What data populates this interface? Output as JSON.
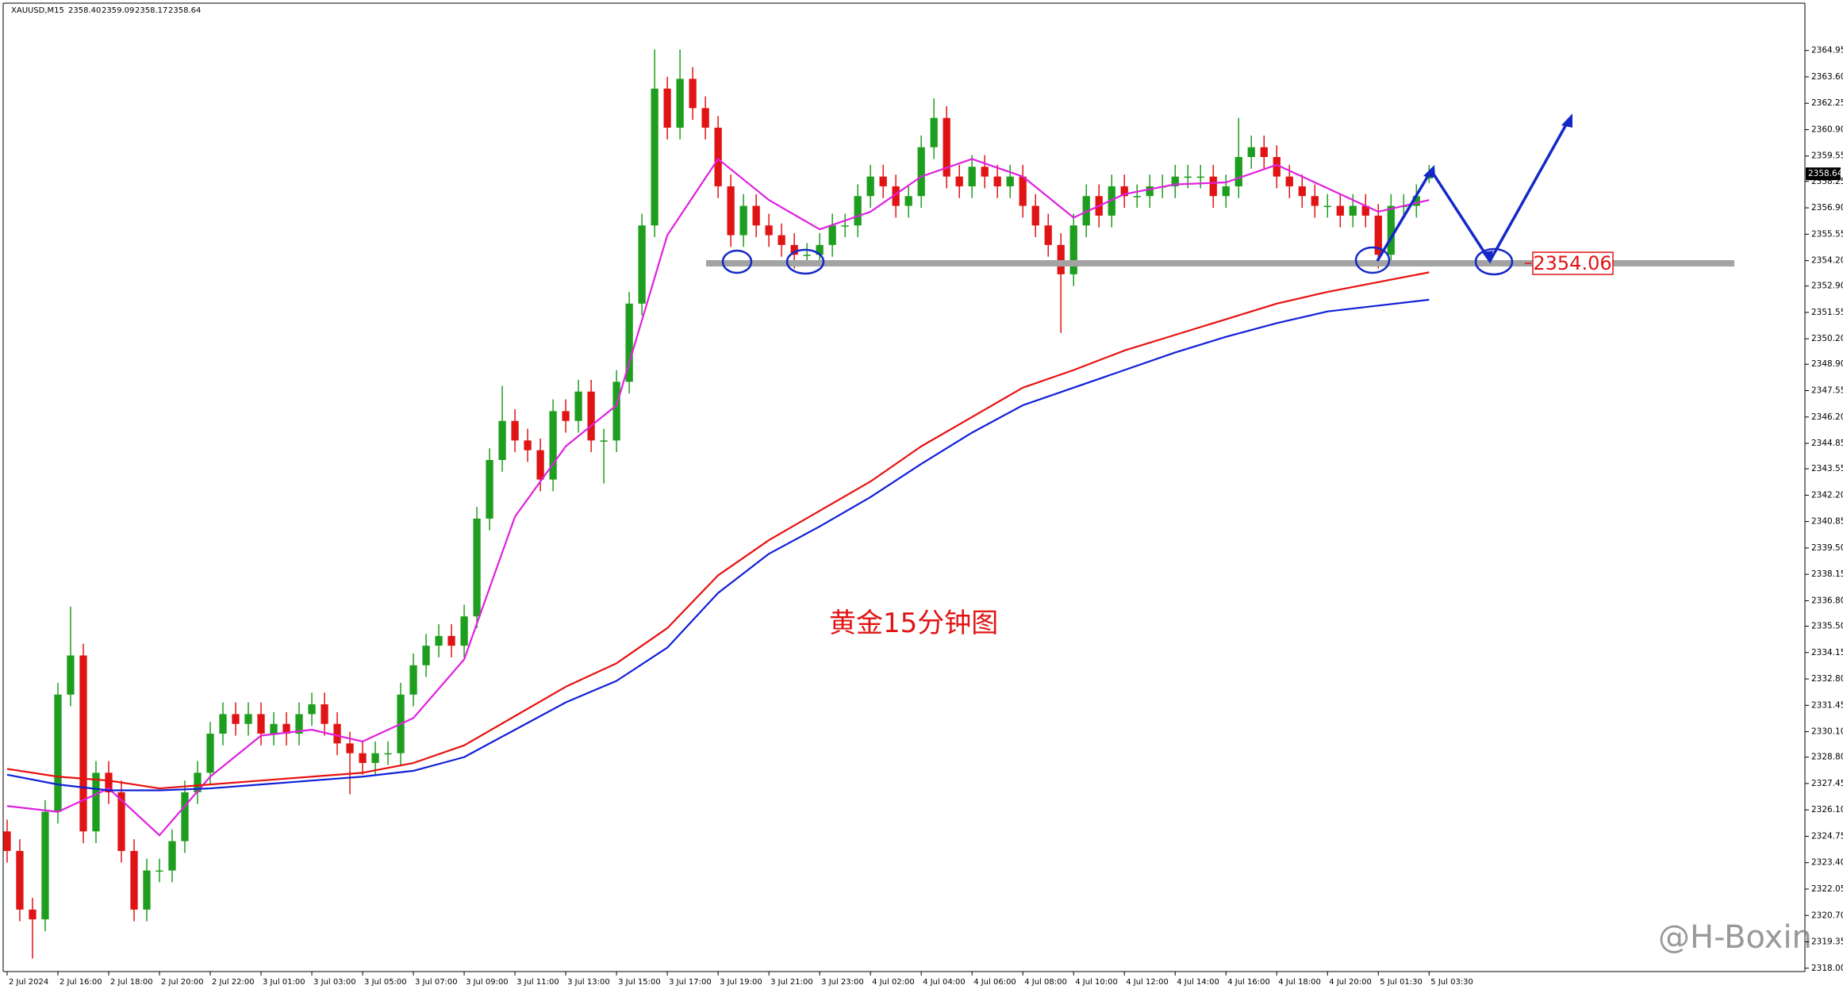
{
  "header": {
    "symbol": "XAUUSD,M15",
    "ohlc": [
      "2358.40",
      "2359.09",
      "2358.17",
      "2358.64"
    ]
  },
  "watermark": "@H-Boxin",
  "chart_data": {
    "type": "candlestick",
    "title": "黄金15分钟图",
    "up_color": "#1e9e1e",
    "down_color": "#e01414",
    "xlim": [
      -0.31,
      141.6
    ],
    "ylim": [
      2317.83,
      2367.37
    ],
    "xticks": [
      {
        "value": 0,
        "label": "2 Jul 2024"
      },
      {
        "value": 4,
        "label": "2 Jul 16:00"
      },
      {
        "value": 8,
        "label": "2 Jul 18:00"
      },
      {
        "value": 12,
        "label": "2 Jul 20:00"
      },
      {
        "value": 16,
        "label": "2 Jul 22:00"
      },
      {
        "value": 20,
        "label": "3 Jul 01:00"
      },
      {
        "value": 24,
        "label": "3 Jul 03:00"
      },
      {
        "value": 28,
        "label": "3 Jul 05:00"
      },
      {
        "value": 32,
        "label": "3 Jul 07:00"
      },
      {
        "value": 36,
        "label": "3 Jul 09:00"
      },
      {
        "value": 40,
        "label": "3 Jul 11:00"
      },
      {
        "value": 44,
        "label": "3 Jul 13:00"
      },
      {
        "value": 48,
        "label": "3 Jul 15:00"
      },
      {
        "value": 52,
        "label": "3 Jul 17:00"
      },
      {
        "value": 56,
        "label": "3 Jul 19:00"
      },
      {
        "value": 60,
        "label": "3 Jul 21:00"
      },
      {
        "value": 64,
        "label": "3 Jul 23:00"
      },
      {
        "value": 68,
        "label": "4 Jul 02:00"
      },
      {
        "value": 72,
        "label": "4 Jul 04:00"
      },
      {
        "value": 76,
        "label": "4 Jul 06:00"
      },
      {
        "value": 80,
        "label": "4 Jul 08:00"
      },
      {
        "value": 84,
        "label": "4 Jul 10:00"
      },
      {
        "value": 88,
        "label": "4 Jul 12:00"
      },
      {
        "value": 92,
        "label": "4 Jul 14:00"
      },
      {
        "value": 96,
        "label": "4 Jul 16:00"
      },
      {
        "value": 100,
        "label": "4 Jul 18:00"
      },
      {
        "value": 104,
        "label": "4 Jul 20:00"
      },
      {
        "value": 108,
        "label": "5 Jul 01:30"
      },
      {
        "value": 112,
        "label": "5 Jul 03:30"
      }
    ],
    "yticks": [
      2364.95,
      {
        "value": 2363.6,
        "label": "2363.60"
      },
      2362.25,
      {
        "value": 2360.9,
        "label": "2360.90"
      },
      2359.55,
      2358.25,
      {
        "value": 2356.9,
        "label": "2356.90"
      },
      2355.55,
      {
        "value": 2354.2,
        "label": "2354.20"
      },
      {
        "value": 2352.9,
        "label": "2352.90"
      },
      2351.55,
      {
        "value": 2350.2,
        "label": "2350.20"
      },
      {
        "value": 2348.9,
        "label": "2348.90"
      },
      2347.55,
      {
        "value": 2346.2,
        "label": "2346.20"
      },
      2344.85,
      2343.55,
      {
        "value": 2342.2,
        "label": "2342.20"
      },
      2340.85,
      {
        "value": 2339.5,
        "label": "2339.50"
      },
      2338.15,
      {
        "value": 2336.8,
        "label": "2336.80"
      },
      {
        "value": 2335.5,
        "label": "2335.50"
      },
      2334.15,
      {
        "value": 2332.8,
        "label": "2332.80"
      },
      2331.45,
      {
        "value": 2330.1,
        "label": "2330.10"
      },
      {
        "value": 2328.8,
        "label": "2328.80"
      },
      2327.45,
      {
        "value": 2326.1,
        "label": "2326.10"
      },
      2324.75,
      {
        "value": 2323.4,
        "label": "2323.40"
      },
      2322.05,
      {
        "value": 2320.7,
        "label": "2320.70"
      },
      2319.35,
      {
        "value": 2318,
        "label": "2318.00"
      }
    ],
    "open": [
      2325,
      2324,
      2321,
      2320.5,
      2326,
      2332,
      2334,
      2325,
      2328,
      2327,
      2324,
      2321,
      2323,
      2323,
      2324.5,
      2327,
      2328,
      2330,
      2331,
      2330.5,
      2331,
      2330,
      2330.5,
      2330,
      2331,
      2331.5,
      2330.5,
      2329.5,
      2329,
      2328.5,
      2329,
      2329,
      2332,
      2333.5,
      2334.5,
      2335,
      2334.5,
      2336,
      2341,
      2344,
      2346,
      2345,
      2344.5,
      2343,
      2346.5,
      2346,
      2347.5,
      2345,
      2345,
      2348,
      2352,
      2356,
      2363,
      2361,
      2363.5,
      2362,
      2361,
      2358,
      2355.5,
      2357,
      2356,
      2355.5,
      2355,
      2354.5,
      2354.5,
      2355,
      2356,
      2356,
      2357.5,
      2358.5,
      2358,
      2357,
      2357.5,
      2360,
      2361.5,
      2358.5,
      2358,
      2359,
      2358.5,
      2358,
      2358.5,
      2357,
      2356,
      2355,
      2353.5,
      2356,
      2357.5,
      2356.5,
      2358,
      2357.5,
      2357.5,
      2358,
      2358,
      2358.5,
      2358.5,
      2358.5,
      2357.5,
      2358,
      2359.5,
      2360,
      2359.5,
      2358.5,
      2358,
      2357.5,
      2357,
      2357,
      2356.5,
      2357,
      2356.5,
      2354.5,
      2357,
      2357,
      2358.4
    ],
    "high": [
      2325.6,
      2324.6,
      2321.6,
      2326.6,
      2332.6,
      2336.5,
      2334.6,
      2328.6,
      2328.6,
      2327.6,
      2324.6,
      2323.6,
      2323.6,
      2325.1,
      2327.6,
      2328.6,
      2330.6,
      2331.6,
      2331.6,
      2331.6,
      2331.6,
      2331.1,
      2331.1,
      2331.6,
      2332.1,
      2332.1,
      2331.1,
      2330.1,
      2329.6,
      2329.6,
      2329.6,
      2332.6,
      2334.1,
      2335.1,
      2335.6,
      2335.6,
      2336.6,
      2341.6,
      2344.6,
      2347.8,
      2346.6,
      2345.6,
      2345.1,
      2347.1,
      2347.1,
      2348.1,
      2348.1,
      2345.6,
      2348.6,
      2352.6,
      2356.6,
      2365,
      2363.6,
      2365,
      2364.1,
      2362.6,
      2361.6,
      2358.6,
      2357.6,
      2357.6,
      2356.6,
      2356.1,
      2355.6,
      2355.1,
      2355.6,
      2356.6,
      2356.6,
      2358.1,
      2359.1,
      2359.1,
      2358.6,
      2358.1,
      2360.6,
      2362.5,
      2362.1,
      2359.1,
      2359.6,
      2359.6,
      2359.1,
      2359.1,
      2359.1,
      2357.6,
      2356.6,
      2355.6,
      2356.6,
      2358.1,
      2358.1,
      2358.6,
      2358.6,
      2358.1,
      2358.6,
      2358.6,
      2359.1,
      2359.1,
      2359.1,
      2359.1,
      2358.6,
      2361.5,
      2360.6,
      2360.6,
      2360.1,
      2359.1,
      2358.6,
      2358.1,
      2357.6,
      2357.6,
      2357.6,
      2357.6,
      2357.1,
      2357.6,
      2357.6,
      2358.1,
      2359.09
    ],
    "low": [
      2323.4,
      2320.4,
      2318.5,
      2319.9,
      2325.4,
      2331.4,
      2324.4,
      2324.4,
      2326.4,
      2323.4,
      2320.4,
      2320.4,
      2322.4,
      2322.4,
      2323.9,
      2326.4,
      2327.4,
      2329.4,
      2329.9,
      2329.9,
      2329.4,
      2329.4,
      2329.4,
      2329.4,
      2330.4,
      2329.9,
      2328.9,
      2326.9,
      2327.9,
      2327.9,
      2328.4,
      2328.4,
      2331.4,
      2332.9,
      2333.9,
      2333.9,
      2333.9,
      2335.4,
      2340.4,
      2343.4,
      2344.4,
      2343.9,
      2342.4,
      2342.4,
      2345.4,
      2345.4,
      2344.4,
      2342.8,
      2344.4,
      2347.4,
      2351.4,
      2355.4,
      2360.4,
      2360.4,
      2361.4,
      2360.4,
      2357.4,
      2354.9,
      2354.9,
      2355.4,
      2354.9,
      2354.4,
      2353.8,
      2353.9,
      2353.9,
      2354.4,
      2355.4,
      2355.4,
      2356.9,
      2357.4,
      2356.4,
      2356.4,
      2356.9,
      2359.4,
      2357.9,
      2357.4,
      2357.4,
      2357.9,
      2357.4,
      2357.4,
      2356.4,
      2355.4,
      2354.4,
      2350.5,
      2352.9,
      2355.4,
      2355.9,
      2355.9,
      2356.9,
      2356.9,
      2356.9,
      2357.4,
      2357.4,
      2357.9,
      2357.9,
      2356.9,
      2356.9,
      2357.4,
      2358.9,
      2358.9,
      2357.9,
      2357.4,
      2356.9,
      2356.4,
      2356.4,
      2355.9,
      2355.9,
      2355.9,
      2353.8,
      2353.9,
      2356.4,
      2356.4,
      2358.17
    ],
    "close": [
      2324,
      2321,
      2320.5,
      2326,
      2332,
      2334,
      2325,
      2328,
      2327,
      2324,
      2321,
      2323,
      2323,
      2324.5,
      2327,
      2328,
      2330,
      2331,
      2330.5,
      2331,
      2330,
      2330.5,
      2330,
      2331,
      2331.5,
      2330.5,
      2329.5,
      2329,
      2328.5,
      2329,
      2329,
      2332,
      2333.5,
      2334.5,
      2335,
      2334.5,
      2336,
      2341,
      2344,
      2346,
      2345,
      2344.5,
      2343,
      2346.5,
      2346,
      2347.5,
      2345,
      2345,
      2348,
      2352,
      2356,
      2363,
      2361,
      2363.5,
      2362,
      2361,
      2358,
      2355.5,
      2357,
      2356,
      2355.5,
      2355,
      2354.5,
      2354.5,
      2355,
      2356,
      2356,
      2357.5,
      2358.5,
      2358,
      2357,
      2357.5,
      2360,
      2361.5,
      2358.5,
      2358,
      2359,
      2358.5,
      2358,
      2358.5,
      2357,
      2356,
      2355,
      2353.5,
      2356,
      2357.5,
      2356.5,
      2358,
      2357.5,
      2357.5,
      2358,
      2358,
      2358.5,
      2358.5,
      2358.5,
      2357.5,
      2358,
      2359.5,
      2360,
      2359.5,
      2358.5,
      2358,
      2357.5,
      2357,
      2357,
      2356.5,
      2357,
      2356.5,
      2354.5,
      2357,
      2357,
      2357.5,
      2358.64
    ],
    "series": [
      {
        "color": "#e020e0",
        "x": [
          0,
          4,
          8,
          12,
          16,
          20,
          24,
          28,
          32,
          36,
          40,
          44,
          48,
          52,
          56,
          60,
          64,
          68,
          72,
          76,
          80,
          84,
          88,
          92,
          96,
          100,
          104,
          108,
          112
        ],
        "values": [
          2326.3,
          2326,
          2327.2,
          2324.8,
          2327.8,
          2329.9,
          2330.2,
          2329.6,
          2330.8,
          2333.8,
          2341.1,
          2344.7,
          2346.8,
          2355.5,
          2359.4,
          2357.3,
          2355.8,
          2356.7,
          2358.5,
          2359.4,
          2358.5,
          2356.4,
          2357.6,
          2358.1,
          2358.2,
          2359.1,
          2357.9,
          2356.7,
          2357.3
        ]
      },
      {
        "color": "#e81010",
        "x": [
          0,
          4,
          8,
          12,
          16,
          20,
          24,
          28,
          32,
          36,
          40,
          44,
          48,
          52,
          56,
          60,
          64,
          68,
          72,
          76,
          80,
          84,
          88,
          92,
          96,
          100,
          104,
          108,
          112
        ],
        "values": [
          2328.2,
          2327.8,
          2327.6,
          2327.2,
          2327.4,
          2327.6,
          2327.8,
          2328,
          2328.5,
          2329.4,
          2330.9,
          2332.4,
          2333.6,
          2335.4,
          2338.1,
          2339.9,
          2341.4,
          2342.9,
          2344.7,
          2346.2,
          2347.7,
          2348.6,
          2349.6,
          2350.4,
          2351.2,
          2352,
          2352.6,
          2353.1,
          2353.6
        ]
      },
      {
        "color": "#1020d8",
        "x": [
          0,
          4,
          8,
          12,
          16,
          20,
          24,
          28,
          32,
          36,
          40,
          44,
          48,
          52,
          56,
          60,
          64,
          68,
          72,
          76,
          80,
          84,
          88,
          92,
          96,
          100,
          104,
          108,
          112
        ],
        "values": [
          2327.9,
          2327.4,
          2327.1,
          2327.1,
          2327.2,
          2327.4,
          2327.6,
          2327.8,
          2328.1,
          2328.8,
          2330.2,
          2331.6,
          2332.7,
          2334.4,
          2337.2,
          2339.2,
          2340.6,
          2342.1,
          2343.8,
          2345.4,
          2346.8,
          2347.7,
          2348.6,
          2349.5,
          2350.3,
          2351,
          2351.6,
          2351.9,
          2352.2
        ]
      }
    ],
    "level": 2354.06
  }
}
